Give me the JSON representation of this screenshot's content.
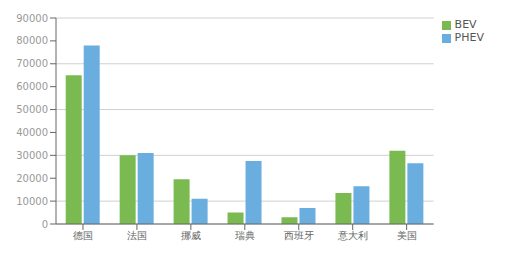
{
  "chart_data": {
    "type": "bar",
    "categories": [
      "德国",
      "法国",
      "挪威",
      "瑞典",
      "西班牙",
      "意大利",
      "美国"
    ],
    "series": [
      {
        "name": "BEV",
        "color": "#7aba50",
        "values": [
          65000,
          30000,
          19500,
          5000,
          3000,
          13500,
          32000
        ]
      },
      {
        "name": "PHEV",
        "color": "#6aaee0",
        "values": [
          78000,
          31000,
          11000,
          27500,
          7000,
          16500,
          26500
        ]
      }
    ],
    "ylim": [
      0,
      90000
    ],
    "yticks": [
      0,
      10000,
      20000,
      30000,
      40000,
      50000,
      60000,
      70000,
      80000,
      90000
    ],
    "grid": true,
    "legend": "upper right"
  }
}
